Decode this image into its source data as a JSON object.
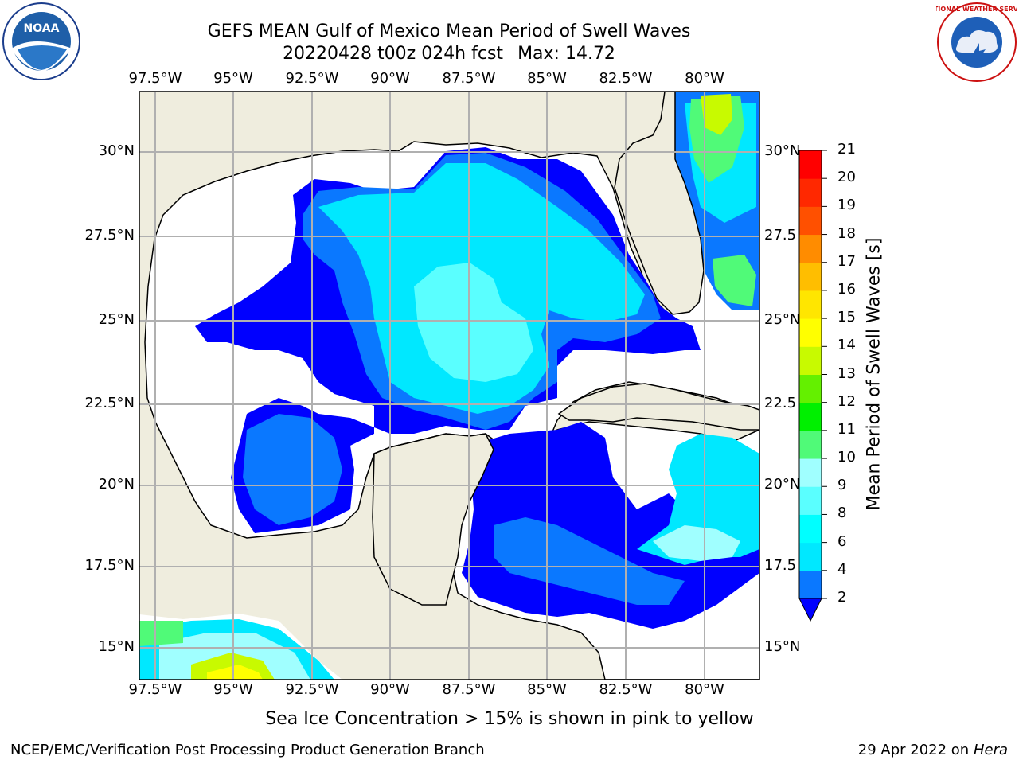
{
  "title": {
    "line1": "GEFS MEAN Gulf of Mexico Mean Period of Swell Waves",
    "line2_date": "20220428 t00z 024h fcst",
    "line2_max": "Max: 14.72"
  },
  "map": {
    "lon_labels": [
      "97.5°W",
      "95°W",
      "92.5°W",
      "90°W",
      "87.5°W",
      "85°W",
      "82.5°W",
      "80°W"
    ],
    "lat_labels_left": [
      "30°N",
      "27.5°N",
      "25°N",
      "22.5°N",
      "20°N",
      "17.5°N",
      "15°N"
    ],
    "lat_labels_right": [
      "30°N",
      "27.5",
      "25°N",
      "22.5",
      "20°N",
      "17.5",
      "15°N"
    ],
    "colors": {
      "land": "#efedde",
      "water_no_data": "#ffffff",
      "grid": "#b0b0b0",
      "coast": "#000000"
    }
  },
  "colorbar": {
    "title": "Mean Period of Swell Waves [s]",
    "tick_labels": [
      "21",
      "20",
      "19",
      "18",
      "17",
      "16",
      "15",
      "14",
      "13",
      "12",
      "11",
      "10",
      "9",
      "8",
      "6",
      "4",
      "2"
    ],
    "levels": [
      2,
      4,
      6,
      8,
      9,
      10,
      11,
      12,
      13,
      14,
      15,
      16,
      17,
      18,
      19,
      20,
      21
    ],
    "colors": [
      "#0000ff",
      "#0a78ff",
      "#00e8ff",
      "#00ffff",
      "#5affff",
      "#a0ffff",
      "#50fa78",
      "#00f000",
      "#64f000",
      "#c8fa00",
      "#ffff00",
      "#ffe600",
      "#ffbe00",
      "#ff8c00",
      "#ff5000",
      "#ff2800",
      "#ff0000"
    ],
    "extend": "min"
  },
  "note": "Sea Ice Concentration > 15% is shown in pink to yellow",
  "footer": {
    "left": "NCEP/EMC/Verification Post Processing Product Generation Branch",
    "right_date": "29 Apr 2022 on",
    "right_host": "Hera"
  },
  "logos": {
    "left_text": "NOAA",
    "right_ring_text": "NATIONAL WEATHER SERVICE"
  }
}
